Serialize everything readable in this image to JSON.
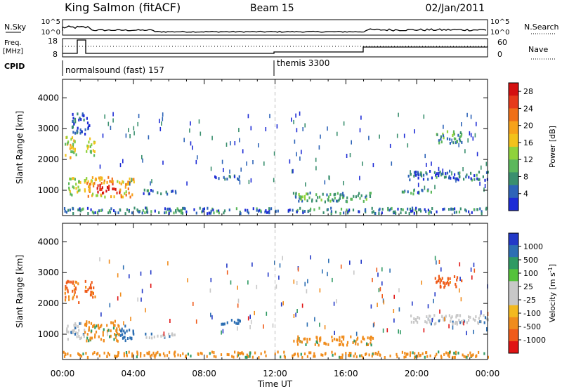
{
  "header": {
    "station": "King Salmon (fitACF)",
    "beam": "Beam 15",
    "date": "02/Jan/2011"
  },
  "top_panels": {
    "nsky_label": "N.Sky",
    "nsearch_label": "N.Search",
    "nsky_ticks": [
      "10^5",
      "10^0"
    ],
    "nsearch_ticks": [
      "10^5",
      "10^0"
    ],
    "freq_label_1": "Freq.",
    "freq_label_2": "[MHz]",
    "freq_ticks": [
      "18",
      "8"
    ],
    "nave_label": "Nave",
    "nave_ticks": [
      "60",
      "0"
    ],
    "cpid_label": "CPID",
    "cpid_segments": [
      {
        "label": "normalsound (fast) 157",
        "start_hour": 0
      },
      {
        "label": "themis 3300",
        "start_hour": 12
      }
    ]
  },
  "colors": {
    "power_scale": [
      "#1d2bd6",
      "#2e64b8",
      "#3a8f6e",
      "#5cb85c",
      "#8fd23c",
      "#f2c21b",
      "#f7a21a",
      "#f07018",
      "#e63a1a",
      "#d41010"
    ],
    "velocity_scale": [
      "#2339c8",
      "#2d6fb3",
      "#2f9a63",
      "#55c23b",
      "#c8c8c8",
      "#c8c8c8",
      "#f3b91f",
      "#f08c1c",
      "#ef5b1a",
      "#e01414"
    ]
  },
  "chart_data": [
    {
      "type": "heatmap",
      "title": "Power",
      "xlabel": "Time UT",
      "ylabel": "Slant Range [km]",
      "x_ticks": [
        "00:00",
        "04:00",
        "08:00",
        "12:00",
        "16:00",
        "20:00",
        "00:00"
      ],
      "xlim": [
        0,
        24
      ],
      "y_ticks": [
        "1000",
        "2000",
        "3000",
        "4000"
      ],
      "ylim": [
        180,
        4600
      ],
      "colorbar_label": "Power [dB]",
      "colorbar_ticks": [
        "4",
        "8",
        "12",
        "16",
        "20",
        "24",
        "28"
      ],
      "colorbar_range": [
        0,
        30
      ],
      "scatter_regions": [
        {
          "t": [
            0.3,
            1.0
          ],
          "r": [
            800,
            1400
          ],
          "v": 12
        },
        {
          "t": [
            0.1,
            0.8
          ],
          "r": [
            2000,
            2700
          ],
          "v": 14
        },
        {
          "t": [
            1.2,
            4.0
          ],
          "r": [
            750,
            1400
          ],
          "v": 18
        },
        {
          "t": [
            1.3,
            1.8
          ],
          "r": [
            2100,
            2700
          ],
          "v": 14
        },
        {
          "t": [
            0.5,
            1.5
          ],
          "r": [
            2800,
            3500
          ],
          "v": 4
        },
        {
          "t": [
            4.5,
            6.5
          ],
          "r": [
            850,
            1000
          ],
          "v": 5
        },
        {
          "t": [
            8.5,
            10.0
          ],
          "r": [
            1300,
            1450
          ],
          "v": 4
        },
        {
          "t": [
            13.0,
            17.5
          ],
          "r": [
            600,
            900
          ],
          "v": 8
        },
        {
          "t": [
            0.0,
            24.0
          ],
          "r": [
            220,
            400
          ],
          "v": 6
        },
        {
          "t": [
            19.5,
            24.0
          ],
          "r": [
            1300,
            1600
          ],
          "v": 5
        },
        {
          "t": [
            21.0,
            22.5
          ],
          "r": [
            2500,
            2900
          ],
          "v": 8
        },
        {
          "t": [
            19.0,
            21.0
          ],
          "r": [
            850,
            1000
          ],
          "v": 7
        },
        {
          "t": [
            2.0,
            24.0
          ],
          "r": [
            1000,
            3500
          ],
          "v": 4
        }
      ]
    },
    {
      "type": "heatmap",
      "title": "Velocity",
      "xlabel": "Time UT",
      "ylabel": "Slant Range [km]",
      "x_ticks": [
        "00:00",
        "04:00",
        "08:00",
        "12:00",
        "16:00",
        "20:00",
        "00:00"
      ],
      "xlim": [
        0,
        24
      ],
      "y_ticks": [
        "1000",
        "2000",
        "3000",
        "4000"
      ],
      "ylim": [
        180,
        4600
      ],
      "colorbar_label": "Velocity [m s^-1]",
      "colorbar_ticks": [
        "1000",
        "500",
        "100",
        "25",
        "-25",
        "-100",
        "-500",
        "-1000"
      ],
      "scatter_regions": [
        {
          "t": [
            0.1,
            0.9
          ],
          "r": [
            2000,
            2700
          ],
          "v": -500
        },
        {
          "t": [
            1.2,
            1.8
          ],
          "r": [
            2100,
            2700
          ],
          "v": -500
        },
        {
          "t": [
            0.2,
            1.2
          ],
          "r": [
            800,
            1400
          ],
          "v": 0
        },
        {
          "t": [
            1.2,
            3.2
          ],
          "r": [
            750,
            1400
          ],
          "v": -100
        },
        {
          "t": [
            3.2,
            4.0
          ],
          "r": [
            750,
            1300
          ],
          "v": 100
        },
        {
          "t": [
            4.5,
            6.5
          ],
          "r": [
            850,
            1000
          ],
          "v": 0
        },
        {
          "t": [
            8.5,
            10.0
          ],
          "r": [
            1300,
            1450
          ],
          "v": 100
        },
        {
          "t": [
            13.0,
            17.5
          ],
          "r": [
            600,
            900
          ],
          "v": -100
        },
        {
          "t": [
            0.0,
            24.0
          ],
          "r": [
            220,
            400
          ],
          "v": -100
        },
        {
          "t": [
            21.0,
            22.5
          ],
          "r": [
            2500,
            2900
          ],
          "v": -500
        },
        {
          "t": [
            19.5,
            24.0
          ],
          "r": [
            1300,
            1600
          ],
          "v": 0
        },
        {
          "t": [
            2.0,
            24.0
          ],
          "r": [
            1000,
            3500
          ],
          "v": 25
        }
      ]
    }
  ]
}
